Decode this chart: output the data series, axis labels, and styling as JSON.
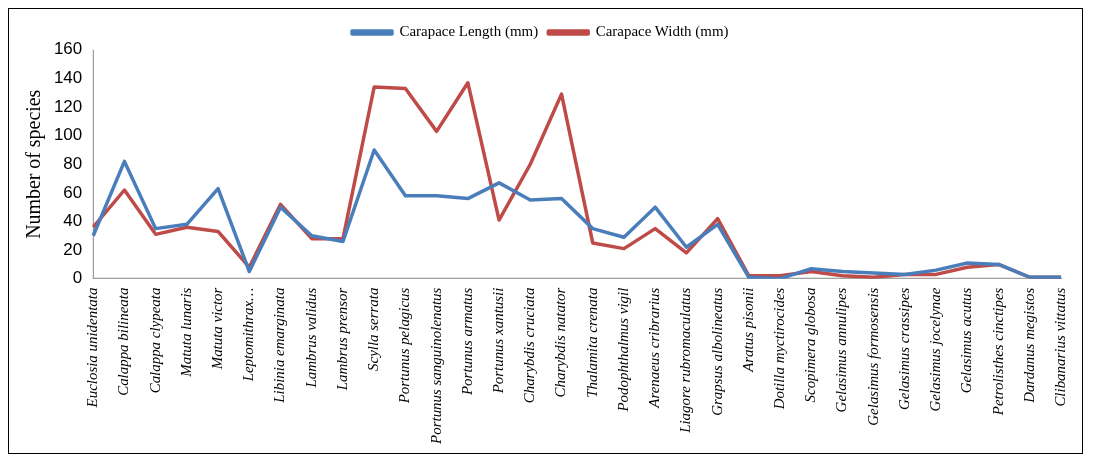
{
  "chart_data": {
    "type": "line",
    "ylabel": "Number of species",
    "categories": [
      "Euclosia unidentata",
      "Calappa bilineata",
      "Calappa clypeata",
      "Matuta lunaris",
      "Matuta victor",
      "Leptomithrax…",
      "Libinia emarginata",
      "Lambrus validus",
      "Lambrus prensor",
      "Scylla serrata",
      "Portunus pelagicus",
      "Portunus sanguinolenatus",
      "Portunus armatus",
      "Portunus xantusii",
      "Charybdis cruciata",
      "Charybdis natator",
      "Thalamita crenata",
      "Podophthalmus vigil",
      "Arenaeus cribrarius",
      "Liagore rubromaculatus",
      "Grapsus albolineatus",
      "Aratus pisonii",
      "Dotilla myctirocides",
      "Scopimera globosa",
      "Gelasimus annulipes",
      "Gelasimus formosensis",
      "Gelasimus crassipes",
      "Gelasimus jocelynae",
      "Gelasimus acutus",
      "Petrolisthes cinctipes",
      "Dardanus megistos",
      "Clibanarius vittatus"
    ],
    "series": [
      {
        "name": "Carapace Length (mm)",
        "color": "#4a7ebb",
        "values": [
          30,
          82,
          35,
          38,
          63,
          5,
          50,
          30,
          26,
          90,
          58,
          58,
          56,
          67,
          55,
          56,
          35,
          29,
          50,
          22,
          38,
          1,
          0,
          7,
          5,
          4,
          3,
          6,
          11,
          10,
          1,
          1
        ]
      },
      {
        "name": "Carapace Width (mm)",
        "color": "#be4b48",
        "values": [
          36,
          62,
          31,
          36,
          33,
          8,
          52,
          28,
          28,
          134,
          133,
          103,
          137,
          41,
          80,
          129,
          25,
          21,
          35,
          18,
          42,
          2,
          2,
          5,
          2,
          1,
          3,
          3,
          8,
          10,
          1,
          1
        ]
      }
    ],
    "ylim": [
      0,
      160
    ],
    "yticks": [
      0,
      20,
      40,
      60,
      80,
      100,
      120,
      140,
      160
    ],
    "grid": false,
    "legend": "top",
    "marker": "none",
    "line_style": "solid"
  }
}
